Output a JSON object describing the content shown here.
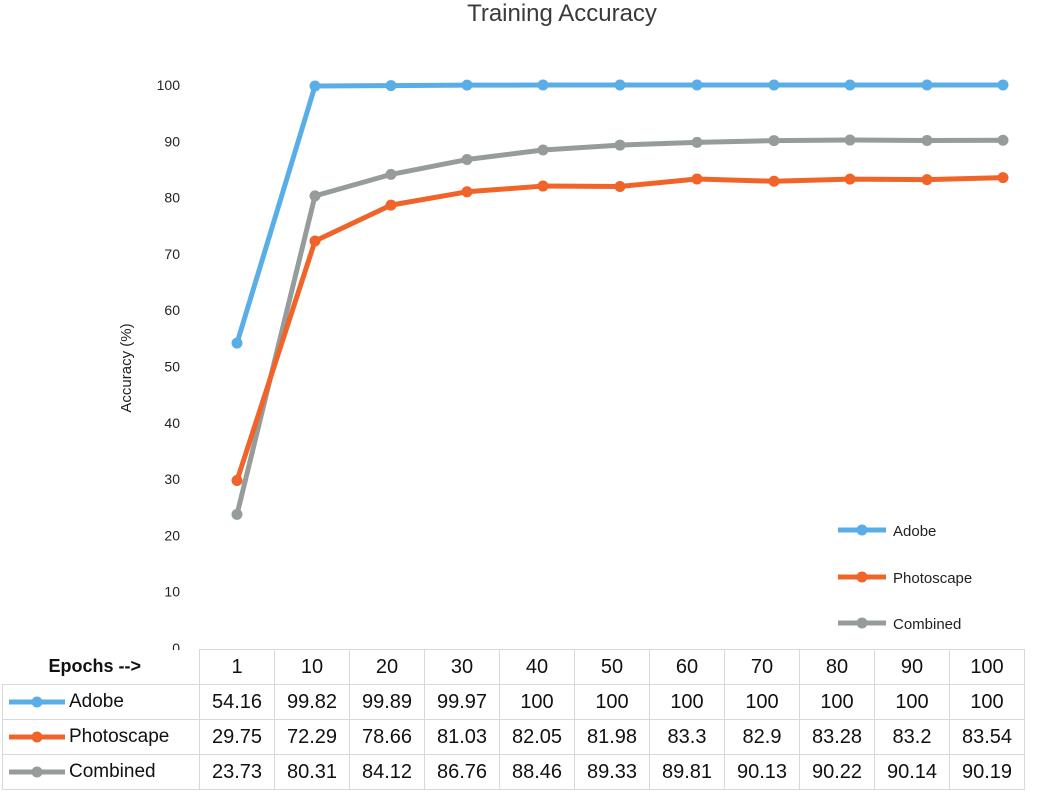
{
  "chart_data": {
    "type": "line",
    "title": "Training Accuracy",
    "ylabel": "Accuracy (%)",
    "ylim": [
      0,
      100
    ],
    "yticks": [
      "0",
      "10",
      "20",
      "30",
      "40",
      "50",
      "60",
      "70",
      "80",
      "90",
      "100"
    ],
    "categories": [
      "1",
      "10",
      "20",
      "30",
      "40",
      "50",
      "60",
      "70",
      "80",
      "90",
      "100"
    ],
    "series": [
      {
        "name": "Adobe",
        "color": "#5aaee8",
        "values": [
          54.16,
          99.82,
          99.89,
          99.97,
          100,
          100,
          100,
          100,
          100,
          100,
          100
        ]
      },
      {
        "name": "Photoscape",
        "color": "#f0642a",
        "values": [
          29.75,
          72.29,
          78.66,
          81.03,
          82.05,
          81.98,
          83.3,
          82.9,
          83.28,
          83.2,
          83.54
        ]
      },
      {
        "name": "Combined",
        "color": "#969c9b",
        "values": [
          23.73,
          80.31,
          84.12,
          86.76,
          88.46,
          89.33,
          89.81,
          90.13,
          90.22,
          90.14,
          90.19
        ]
      }
    ],
    "legend": "bottom-right",
    "grid": false
  },
  "table": {
    "corner_label": "Epochs -->",
    "columns": [
      "1",
      "10",
      "20",
      "30",
      "40",
      "50",
      "60",
      "70",
      "80",
      "90",
      "100"
    ],
    "rows": [
      {
        "label": "Adobe",
        "color": "#5aaee8",
        "values": [
          "54.16",
          "99.82",
          "99.89",
          "99.97",
          "100",
          "100",
          "100",
          "100",
          "100",
          "100",
          "100"
        ]
      },
      {
        "label": "Photoscape",
        "color": "#f0642a",
        "values": [
          "29.75",
          "72.29",
          "78.66",
          "81.03",
          "82.05",
          "81.98",
          "83.3",
          "82.9",
          "83.28",
          "83.2",
          "83.54"
        ]
      },
      {
        "label": "Combined",
        "color": "#969c9b",
        "values": [
          "23.73",
          "80.31",
          "84.12",
          "86.76",
          "88.46",
          "89.33",
          "89.81",
          "90.13",
          "90.22",
          "90.14",
          "90.19"
        ]
      }
    ]
  }
}
